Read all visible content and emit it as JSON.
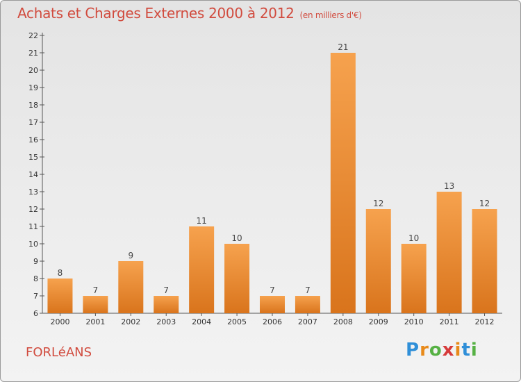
{
  "header": {
    "title": "Achats et Charges Externes 2000 à 2012",
    "subtitle": "(en milliers d'€)"
  },
  "footer": {
    "city": "FORLéANS",
    "brand": [
      "P",
      "r",
      "o",
      "x",
      "i",
      "t",
      "i"
    ],
    "brand_colors": [
      "#2f8fd8",
      "#e88a1a",
      "#56b144",
      "#d63a3a",
      "#e88a1a",
      "#2f8fd8",
      "#56b144"
    ]
  },
  "colors": {
    "bar_top": "#f6a24e",
    "bar_bottom": "#d9741c",
    "title": "#d14b3e"
  },
  "chart_data": {
    "type": "bar",
    "categories": [
      "2000",
      "2001",
      "2002",
      "2003",
      "2004",
      "2005",
      "2006",
      "2007",
      "2008",
      "2009",
      "2010",
      "2011",
      "2012"
    ],
    "values": [
      8,
      7,
      9,
      7,
      11,
      10,
      7,
      7,
      21,
      12,
      10,
      13,
      12
    ],
    "ylim": [
      6,
      22
    ],
    "yticks": [
      6,
      7,
      8,
      9,
      10,
      11,
      12,
      13,
      14,
      15,
      16,
      17,
      18,
      19,
      20,
      21,
      22
    ],
    "grid": false
  }
}
